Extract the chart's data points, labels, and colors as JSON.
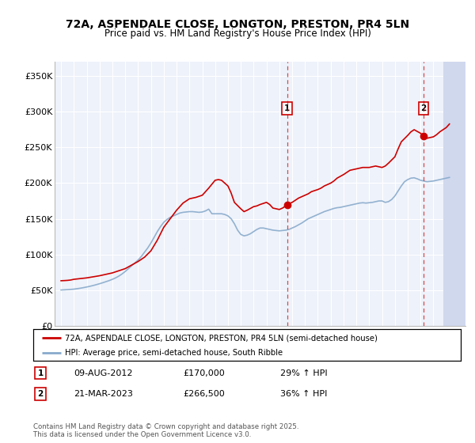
{
  "title_line1": "72A, ASPENDALE CLOSE, LONGTON, PRESTON, PR4 5LN",
  "title_line2": "Price paid vs. HM Land Registry's House Price Index (HPI)",
  "legend_label_red": "72A, ASPENDALE CLOSE, LONGTON, PRESTON, PR4 5LN (semi-detached house)",
  "legend_label_blue": "HPI: Average price, semi-detached house, South Ribble",
  "transaction1_date": "09-AUG-2012",
  "transaction1_price": "£170,000",
  "transaction1_info": "29% ↑ HPI",
  "transaction1_year": 2012.6,
  "transaction1_value": 170000,
  "transaction2_date": "21-MAR-2023",
  "transaction2_price": "£266,500",
  "transaction2_info": "36% ↑ HPI",
  "transaction2_year": 2023.22,
  "transaction2_value": 266500,
  "footer": "Contains HM Land Registry data © Crown copyright and database right 2025.\nThis data is licensed under the Open Government Licence v3.0.",
  "xlim": [
    1994.5,
    2026.5
  ],
  "ylim": [
    0,
    370000
  ],
  "yticks": [
    0,
    50000,
    100000,
    150000,
    200000,
    250000,
    300000,
    350000
  ],
  "ytick_labels": [
    "£0",
    "£50K",
    "£100K",
    "£150K",
    "£200K",
    "£250K",
    "£300K",
    "£350K"
  ],
  "bg_color": "#eef2fa",
  "hatch_color": "#d0d8ee",
  "red_color": "#cc0000",
  "blue_color": "#88aacc",
  "grid_color": "#ffffff",
  "hpi_years": [
    1995.0,
    1995.25,
    1995.5,
    1995.75,
    1996.0,
    1996.25,
    1996.5,
    1996.75,
    1997.0,
    1997.25,
    1997.5,
    1997.75,
    1998.0,
    1998.25,
    1998.5,
    1998.75,
    1999.0,
    1999.25,
    1999.5,
    1999.75,
    2000.0,
    2000.25,
    2000.5,
    2000.75,
    2001.0,
    2001.25,
    2001.5,
    2001.75,
    2002.0,
    2002.25,
    2002.5,
    2002.75,
    2003.0,
    2003.25,
    2003.5,
    2003.75,
    2004.0,
    2004.25,
    2004.5,
    2004.75,
    2005.0,
    2005.25,
    2005.5,
    2005.75,
    2006.0,
    2006.25,
    2006.5,
    2006.75,
    2007.0,
    2007.25,
    2007.5,
    2007.75,
    2008.0,
    2008.25,
    2008.5,
    2008.75,
    2009.0,
    2009.25,
    2009.5,
    2009.75,
    2010.0,
    2010.25,
    2010.5,
    2010.75,
    2011.0,
    2011.25,
    2011.5,
    2011.75,
    2012.0,
    2012.25,
    2012.5,
    2012.75,
    2013.0,
    2013.25,
    2013.5,
    2013.75,
    2014.0,
    2014.25,
    2014.5,
    2014.75,
    2015.0,
    2015.25,
    2015.5,
    2015.75,
    2016.0,
    2016.25,
    2016.5,
    2016.75,
    2017.0,
    2017.25,
    2017.5,
    2017.75,
    2018.0,
    2018.25,
    2018.5,
    2018.75,
    2019.0,
    2019.25,
    2019.5,
    2019.75,
    2020.0,
    2020.25,
    2020.5,
    2020.75,
    2021.0,
    2021.25,
    2021.5,
    2021.75,
    2022.0,
    2022.25,
    2022.5,
    2022.75,
    2023.0,
    2023.25,
    2023.5,
    2023.75,
    2024.0,
    2024.25,
    2024.5,
    2024.75,
    2025.0,
    2025.25
  ],
  "hpi_values": [
    50000,
    50200,
    50500,
    50800,
    51200,
    51800,
    52500,
    53300,
    54200,
    55200,
    56300,
    57500,
    58800,
    60200,
    61700,
    63200,
    65000,
    67000,
    69500,
    72500,
    76000,
    80000,
    84000,
    88000,
    92000,
    97000,
    103000,
    109000,
    116000,
    124000,
    132000,
    139000,
    145000,
    149000,
    152000,
    154000,
    156000,
    158000,
    159000,
    159500,
    160000,
    160000,
    159500,
    159000,
    159500,
    161000,
    163500,
    157000,
    157000,
    157000,
    157000,
    156000,
    154000,
    150000,
    143000,
    134000,
    128000,
    126000,
    127000,
    129000,
    132000,
    135000,
    137000,
    137000,
    136000,
    135000,
    134000,
    133500,
    133000,
    133500,
    134000,
    135000,
    137000,
    139000,
    141500,
    144000,
    147000,
    150000,
    152000,
    154000,
    156000,
    158000,
    160000,
    161500,
    163000,
    164500,
    165500,
    166000,
    167000,
    168000,
    169000,
    170000,
    171000,
    172000,
    172500,
    172000,
    172500,
    173000,
    174000,
    175000,
    175000,
    173000,
    174000,
    177000,
    182000,
    189000,
    196000,
    202000,
    205000,
    207000,
    207500,
    206000,
    204000,
    203000,
    202000,
    202500,
    203000,
    204000,
    205000,
    206000,
    207000,
    208000
  ],
  "prop_years": [
    1995.0,
    1995.25,
    1995.5,
    1995.75,
    1996.0,
    1996.5,
    1997.0,
    1997.5,
    1998.0,
    1998.5,
    1999.0,
    1999.5,
    2000.0,
    2000.5,
    2001.0,
    2001.5,
    2002.0,
    2002.5,
    2003.0,
    2003.5,
    2004.0,
    2004.5,
    2005.0,
    2005.5,
    2006.0,
    2006.5,
    2007.0,
    2007.25,
    2007.5,
    2008.0,
    2008.25,
    2008.5,
    2009.0,
    2009.25,
    2009.5,
    2010.0,
    2010.25,
    2010.5,
    2011.0,
    2011.25,
    2011.5,
    2012.0,
    2012.25,
    2012.5,
    2012.6,
    2013.0,
    2013.25,
    2013.5,
    2014.0,
    2014.25,
    2014.5,
    2015.0,
    2015.25,
    2015.5,
    2016.0,
    2016.25,
    2016.5,
    2017.0,
    2017.25,
    2017.5,
    2018.0,
    2018.25,
    2018.5,
    2019.0,
    2019.25,
    2019.5,
    2020.0,
    2020.25,
    2020.5,
    2021.0,
    2021.25,
    2021.5,
    2022.0,
    2022.25,
    2022.5,
    2023.0,
    2023.22,
    2023.5,
    2024.0,
    2024.25,
    2024.5,
    2025.0,
    2025.25
  ],
  "prop_values": [
    63000,
    63200,
    63500,
    64000,
    65000,
    66000,
    67000,
    68500,
    70000,
    72000,
    74000,
    77000,
    80000,
    85000,
    90000,
    96000,
    105000,
    120000,
    138000,
    150000,
    162000,
    172000,
    178000,
    180000,
    183000,
    193000,
    204000,
    205000,
    204000,
    196000,
    186000,
    173000,
    164000,
    160000,
    162000,
    167000,
    168000,
    170000,
    173000,
    170000,
    165000,
    163000,
    165000,
    168000,
    170000,
    173000,
    176000,
    179000,
    183000,
    185000,
    188000,
    191000,
    193000,
    196000,
    200000,
    203000,
    207000,
    212000,
    215000,
    218000,
    220000,
    221000,
    222000,
    222000,
    223000,
    224000,
    222000,
    224000,
    228000,
    237000,
    248000,
    258000,
    267000,
    272000,
    275000,
    270000,
    266500,
    263000,
    265000,
    268000,
    272000,
    278000,
    283000
  ]
}
